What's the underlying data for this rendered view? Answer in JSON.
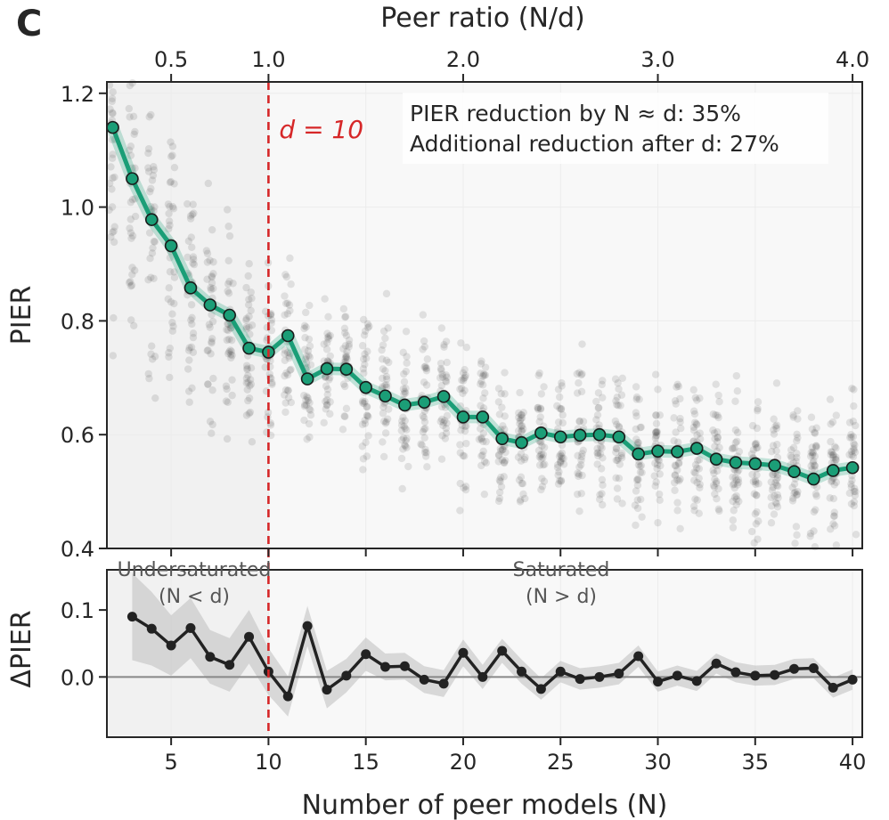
{
  "panel_label": "C",
  "colors": {
    "main_line": "#1b9e77",
    "cutoff": "#d62728",
    "delta_line": "#222222",
    "scatter": "#333333",
    "band": "#bdbdbd",
    "undersat_bg": "#f1f1f1",
    "sat_bg": "#f8f8f8"
  },
  "chart_data": [
    {
      "type": "line",
      "name": "top-panel",
      "title": "",
      "xlabel": "Number of peer models (N)",
      "ylabel": "PIER",
      "top_axis_label": "Peer ratio (N/d)",
      "xlim": [
        1.7,
        40.5
      ],
      "ylim": [
        0.4,
        1.22
      ],
      "x_ticks": [
        5,
        10,
        15,
        20,
        25,
        30,
        35,
        40
      ],
      "x_tick_labels": [
        "5",
        "10",
        "15",
        "20",
        "25",
        "30",
        "35",
        "40"
      ],
      "y_ticks": [
        0.4,
        0.6,
        0.8,
        1.0,
        1.2
      ],
      "y_tick_labels": [
        "0.4",
        "0.6",
        "0.8",
        "1.0",
        "1.2"
      ],
      "top_ticks": [
        5,
        10,
        20,
        30,
        40
      ],
      "top_tick_labels": [
        "0.5",
        "1.0",
        "2.0",
        "3.0",
        "4.0"
      ],
      "cutoff_x": 10,
      "cutoff_label": "d = 10",
      "annotation_lines": [
        "PIER reduction by N ≈ d: 35%",
        "Additional reduction after d: 27%"
      ],
      "x": [
        2,
        3,
        4,
        5,
        6,
        7,
        8,
        9,
        10,
        11,
        12,
        13,
        14,
        15,
        16,
        17,
        18,
        19,
        20,
        21,
        22,
        23,
        24,
        25,
        26,
        27,
        28,
        29,
        30,
        31,
        32,
        33,
        34,
        35,
        36,
        37,
        38,
        39,
        40
      ],
      "y": [
        1.14,
        1.05,
        0.978,
        0.932,
        0.858,
        0.828,
        0.81,
        0.752,
        0.745,
        0.774,
        0.698,
        0.716,
        0.715,
        0.683,
        0.668,
        0.652,
        0.657,
        0.667,
        0.631,
        0.631,
        0.593,
        0.586,
        0.603,
        0.596,
        0.599,
        0.6,
        0.596,
        0.566,
        0.571,
        0.57,
        0.576,
        0.557,
        0.551,
        0.549,
        0.546,
        0.535,
        0.522,
        0.537,
        0.542
      ],
      "scatter": "replicate PIER values per N (grey points, ~30 per N, spread around the mean)"
    },
    {
      "type": "line",
      "name": "bottom-panel",
      "xlabel": "Number of peer models (N)",
      "ylabel": "ΔPIER",
      "xlim": [
        1.7,
        40.5
      ],
      "ylim": [
        -0.09,
        0.16
      ],
      "y_ticks": [
        -0.0,
        0.1
      ],
      "y_tick_labels": [
        "0.0",
        "0.1"
      ],
      "zone_labels": {
        "undersaturated": [
          "Undersaturated",
          "(N < d)"
        ],
        "saturated": [
          "Saturated",
          "(N > d)"
        ]
      },
      "x": [
        3,
        4,
        5,
        6,
        7,
        8,
        9,
        10,
        11,
        12,
        13,
        14,
        15,
        16,
        17,
        18,
        19,
        20,
        21,
        22,
        23,
        24,
        25,
        26,
        27,
        28,
        29,
        30,
        31,
        32,
        33,
        34,
        35,
        36,
        37,
        38,
        39,
        40
      ],
      "y": [
        0.09,
        0.072,
        0.047,
        0.073,
        0.03,
        0.018,
        0.06,
        0.008,
        -0.029,
        0.076,
        -0.019,
        0.002,
        0.034,
        0.015,
        0.016,
        -0.004,
        -0.01,
        0.036,
        0.0,
        0.039,
        0.008,
        -0.018,
        0.008,
        -0.003,
        0.0,
        0.005,
        0.031,
        -0.007,
        0.002,
        -0.006,
        0.02,
        0.007,
        0.002,
        0.003,
        0.012,
        0.013,
        -0.016,
        -0.004
      ],
      "band_halfwidth": [
        0.065,
        0.055,
        0.045,
        0.045,
        0.04,
        0.04,
        0.04,
        0.035,
        0.03,
        0.03,
        0.028,
        0.025,
        0.025,
        0.02,
        0.02,
        0.02,
        0.02,
        0.02,
        0.018,
        0.018,
        0.018,
        0.016,
        0.016,
        0.016,
        0.016,
        0.016,
        0.016,
        0.015,
        0.015,
        0.015,
        0.015,
        0.015,
        0.015,
        0.015,
        0.015,
        0.015,
        0.015,
        0.015
      ]
    }
  ]
}
